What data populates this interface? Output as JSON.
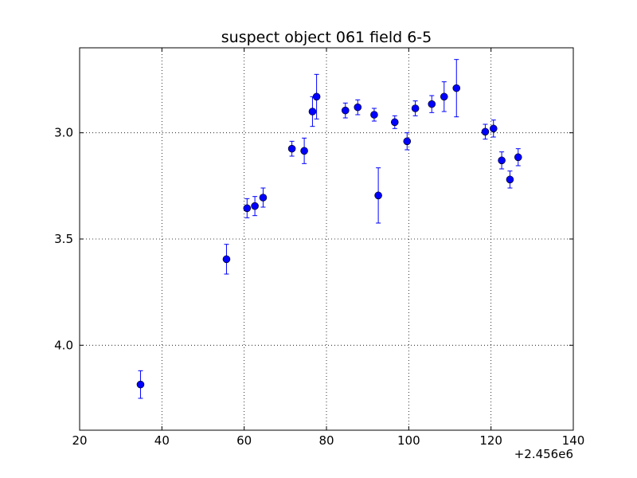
{
  "chart_data": {
    "type": "scatter",
    "title": "suspect object 061 field 6-5",
    "xlabel": "",
    "ylabel": "",
    "x_offset_label": "+2.456e6",
    "xlim": [
      20,
      140
    ],
    "ylim": [
      4.4,
      2.6
    ],
    "y_inverted": true,
    "grid": true,
    "x_ticks": [
      "20",
      "40",
      "60",
      "80",
      "100",
      "120",
      "140"
    ],
    "y_ticks": [
      "3.0",
      "3.5",
      "4.0"
    ],
    "marker_color": "#0000ff",
    "points": [
      {
        "x": 34.8,
        "y": 4.185,
        "err": 0.065
      },
      {
        "x": 55.7,
        "y": 3.595,
        "err": 0.07
      },
      {
        "x": 60.7,
        "y": 3.355,
        "err": 0.045
      },
      {
        "x": 62.6,
        "y": 3.345,
        "err": 0.045
      },
      {
        "x": 64.6,
        "y": 3.305,
        "err": 0.045
      },
      {
        "x": 71.6,
        "y": 3.075,
        "err": 0.035
      },
      {
        "x": 74.6,
        "y": 3.085,
        "err": 0.06
      },
      {
        "x": 76.6,
        "y": 2.9,
        "err": 0.07
      },
      {
        "x": 77.6,
        "y": 2.83,
        "err": 0.105
      },
      {
        "x": 84.6,
        "y": 2.895,
        "err": 0.035
      },
      {
        "x": 87.6,
        "y": 2.88,
        "err": 0.035
      },
      {
        "x": 91.6,
        "y": 2.915,
        "err": 0.03
      },
      {
        "x": 92.6,
        "y": 3.295,
        "err": 0.13
      },
      {
        "x": 96.6,
        "y": 2.95,
        "err": 0.03
      },
      {
        "x": 99.6,
        "y": 3.04,
        "err": 0.04
      },
      {
        "x": 101.6,
        "y": 2.885,
        "err": 0.035
      },
      {
        "x": 105.6,
        "y": 2.865,
        "err": 0.04
      },
      {
        "x": 108.6,
        "y": 2.83,
        "err": 0.07
      },
      {
        "x": 111.6,
        "y": 2.79,
        "err": 0.135
      },
      {
        "x": 118.6,
        "y": 2.995,
        "err": 0.035
      },
      {
        "x": 120.6,
        "y": 2.98,
        "err": 0.04
      },
      {
        "x": 122.6,
        "y": 3.13,
        "err": 0.04
      },
      {
        "x": 124.6,
        "y": 3.22,
        "err": 0.04
      },
      {
        "x": 126.6,
        "y": 3.115,
        "err": 0.04
      }
    ]
  }
}
